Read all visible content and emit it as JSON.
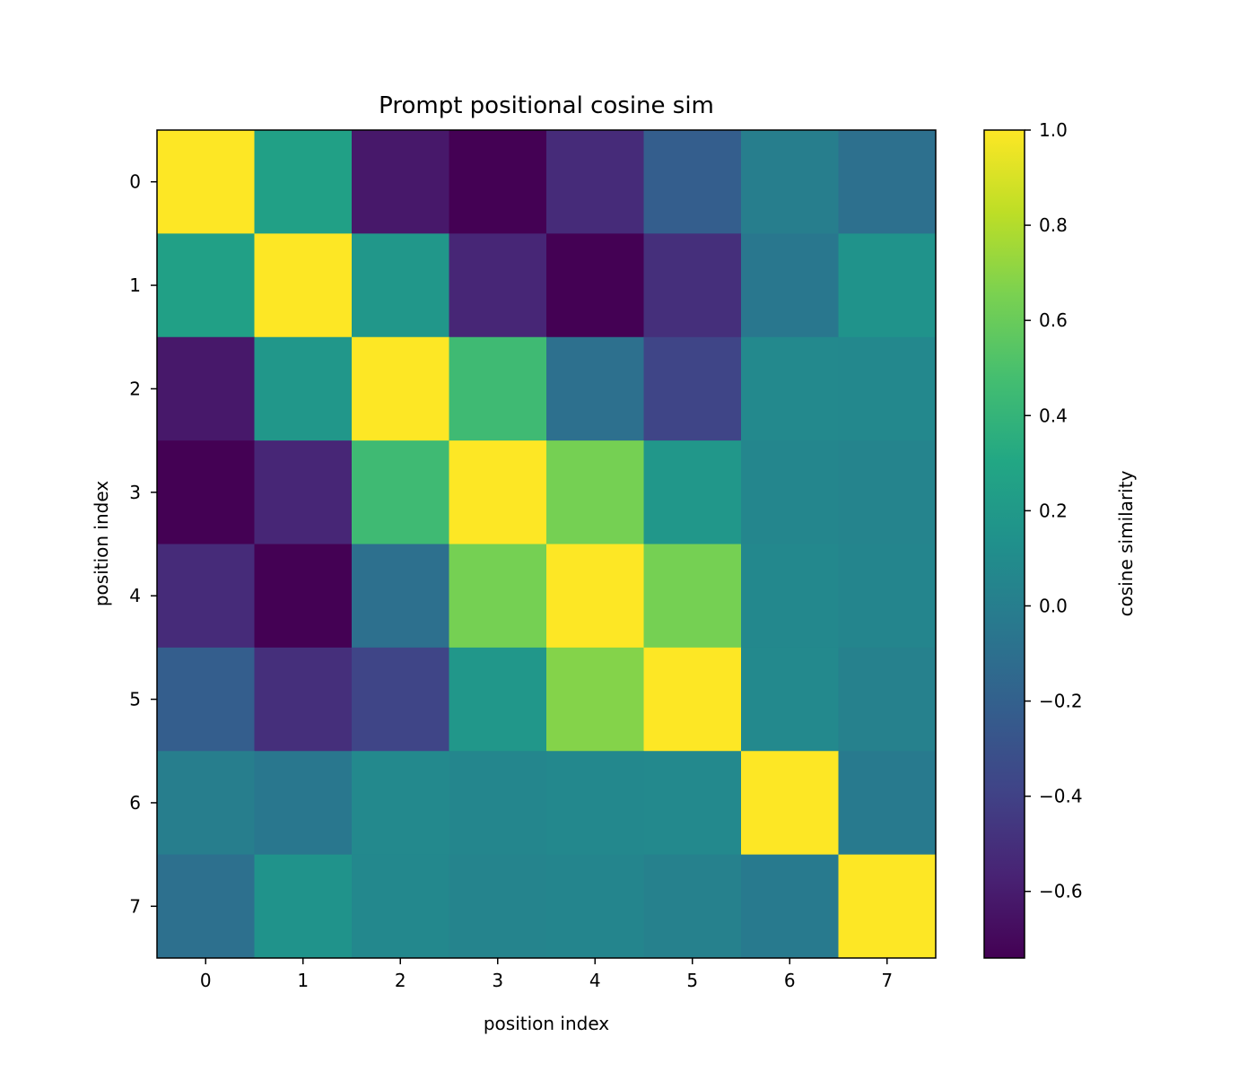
{
  "chart_data": {
    "type": "heatmap",
    "title": "Prompt positional cosine sim",
    "xlabel": "position index",
    "ylabel": "position index",
    "x_ticks": [
      "0",
      "1",
      "2",
      "3",
      "4",
      "5",
      "6",
      "7"
    ],
    "y_ticks": [
      "0",
      "1",
      "2",
      "3",
      "4",
      "5",
      "6",
      "7"
    ],
    "colormap": "viridis",
    "colorbar": {
      "label": "cosine similarity",
      "vmin": -0.74,
      "vmax": 1.0,
      "ticks": [
        1.0,
        0.8,
        0.6,
        0.4,
        0.2,
        0.0,
        -0.2,
        -0.4,
        -0.6
      ],
      "tick_labels": [
        "1.0",
        "0.8",
        "0.6",
        "0.4",
        "0.2",
        "0.0",
        "−0.2",
        "−0.4",
        "−0.6"
      ]
    },
    "values": [
      [
        1.0,
        0.25,
        -0.62,
        -0.74,
        -0.52,
        -0.22,
        0.0,
        -0.1
      ],
      [
        0.25,
        1.0,
        0.18,
        -0.55,
        -0.74,
        -0.5,
        -0.05,
        0.15
      ],
      [
        -0.62,
        0.18,
        1.0,
        0.45,
        -0.1,
        -0.38,
        0.08,
        0.07
      ],
      [
        -0.74,
        -0.55,
        0.45,
        1.0,
        0.64,
        0.18,
        0.06,
        0.04
      ],
      [
        -0.52,
        -0.74,
        -0.1,
        0.64,
        1.0,
        0.64,
        0.07,
        0.05
      ],
      [
        -0.22,
        -0.5,
        -0.38,
        0.18,
        0.68,
        1.0,
        0.08,
        0.02
      ],
      [
        0.0,
        -0.05,
        0.08,
        0.06,
        0.07,
        0.08,
        1.0,
        -0.03
      ],
      [
        -0.1,
        0.15,
        0.07,
        0.04,
        0.05,
        0.02,
        -0.03,
        1.0
      ]
    ]
  }
}
